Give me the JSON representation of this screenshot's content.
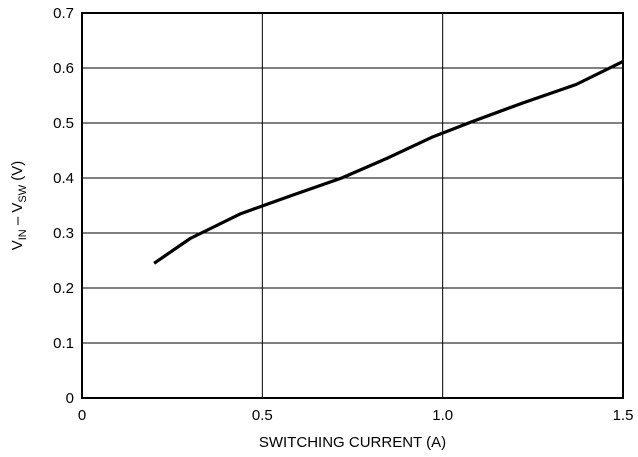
{
  "chart_data": {
    "type": "line",
    "xlabel": "SWITCHING CURRENT (A)",
    "ylabel": {
      "parts": [
        {
          "text": "V",
          "sub": false
        },
        {
          "text": "IN",
          "sub": true
        },
        {
          "text": " – V",
          "sub": false
        },
        {
          "text": "SW",
          "sub": true
        },
        {
          "text": " (V)",
          "sub": false
        }
      ]
    },
    "xlim": [
      0,
      1.5
    ],
    "ylim": [
      0,
      0.7
    ],
    "xticks": [
      0,
      0.5,
      1.0,
      1.5
    ],
    "xtick_labels": [
      "0",
      "0.5",
      "1.0",
      "1.5"
    ],
    "yticks": [
      0,
      0.1,
      0.2,
      0.3,
      0.4,
      0.5,
      0.6,
      0.7
    ],
    "ytick_labels": [
      "0",
      "0.1",
      "0.2",
      "0.3",
      "0.4",
      "0.5",
      "0.6",
      "0.7"
    ],
    "grid": true,
    "series": [
      {
        "color": "#000000",
        "x": [
          0.2,
          0.3,
          0.44,
          0.58,
          0.72,
          0.85,
          0.97,
          1.08,
          1.22,
          1.37,
          1.5
        ],
        "y": [
          0.245,
          0.29,
          0.335,
          0.368,
          0.4,
          0.437,
          0.474,
          0.502,
          0.536,
          0.57,
          0.612
        ]
      }
    ]
  }
}
